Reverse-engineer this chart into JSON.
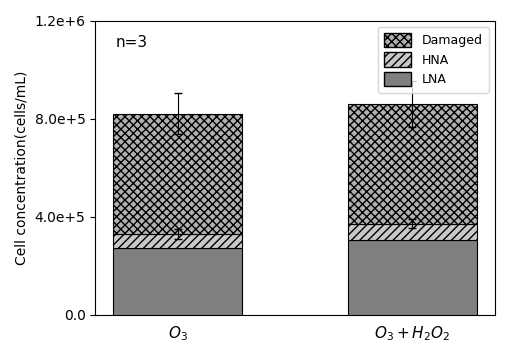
{
  "categories": [
    "$O_3$",
    "$O_3+H_2O_2$"
  ],
  "LNA": [
    270000,
    305000
  ],
  "HNA": [
    60000,
    65000
  ],
  "Damaged": [
    490000,
    490000
  ],
  "HNA_err": [
    20000,
    18000
  ],
  "Total_err": [
    85000,
    95000
  ],
  "bar_color_LNA": "#7f7f7f",
  "bar_color_HNA": "#c8c8c8",
  "bar_color_Damaged": "#b0b0b0",
  "hatch_HNA": "////",
  "hatch_Damaged": "xxxx",
  "ylabel": "Cell concentration(cells/mL)",
  "ylim": [
    0,
    1200000.0
  ],
  "yticks": [
    0,
    400000,
    800000,
    1200000
  ],
  "ytick_labels": [
    "0.0",
    "4.0e+5",
    "8.0e+5",
    "1.2e+6"
  ],
  "annotation": "n=3",
  "bar_width": 0.55,
  "figsize": [
    5.1,
    3.58
  ],
  "dpi": 100
}
